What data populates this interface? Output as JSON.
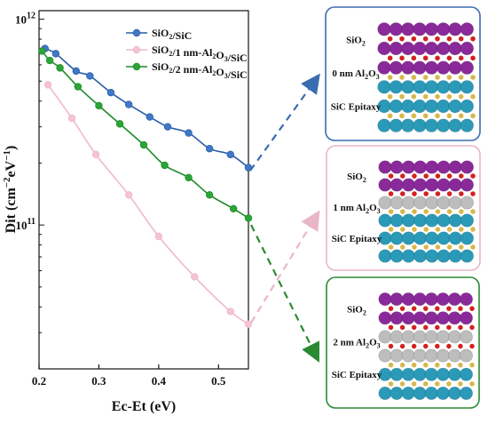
{
  "chart_data": {
    "type": "line",
    "xlabel": "Ec-Et (eV)",
    "ylabel_main": "Dit",
    "ylabel_unit_base": "cm",
    "ylabel_unit_exp1": "−2",
    "ylabel_unit_mid": "eV",
    "ylabel_unit_exp2": "−1",
    "y_scale": "log",
    "xlim": [
      0.2,
      0.55
    ],
    "ylim": [
      20000000000.0,
      1100000000000.0
    ],
    "x_ticks": [
      {
        "value": 0.2,
        "label": "0.2"
      },
      {
        "value": 0.3,
        "label": "0.3"
      },
      {
        "value": 0.4,
        "label": "0.4"
      },
      {
        "value": 0.5,
        "label": "0.5"
      }
    ],
    "y_ticks": [
      {
        "value": 100000000000.0,
        "base": "10",
        "exp": "11"
      },
      {
        "value": 1000000000000.0,
        "base": "10",
        "exp": "12"
      }
    ],
    "legend_position": "top-right",
    "series": [
      {
        "name": "SiO2/SiC",
        "name_parts": [
          "SiO",
          "2",
          "/SiC",
          "",
          ""
        ],
        "color": "#2a5ea8",
        "marker_color": "#3f78c6",
        "x": [
          0.21,
          0.228,
          0.262,
          0.285,
          0.32,
          0.35,
          0.385,
          0.415,
          0.45,
          0.485,
          0.52,
          0.55
        ],
        "y": [
          720000000000.0,
          680000000000.0,
          560000000000.0,
          530000000000.0,
          440000000000.0,
          385000000000.0,
          335000000000.0,
          300000000000.0,
          280000000000.0,
          235000000000.0,
          220000000000.0,
          190000000000.0
        ]
      },
      {
        "name": "SiO2/1 nm-Al2O3/SiC",
        "name_parts": [
          "SiO",
          "2",
          "/1 nm-Al",
          "2",
          "O",
          "3",
          "/SiC"
        ],
        "color": "#f0b8c8",
        "marker_color": "#f4c4d2",
        "x": [
          0.215,
          0.255,
          0.295,
          0.35,
          0.4,
          0.46,
          0.52,
          0.55
        ],
        "y": [
          480000000000.0,
          330000000000.0,
          220000000000.0,
          140000000000.0,
          88000000000.0,
          56000000000.0,
          38000000000.0,
          33000000000.0
        ]
      },
      {
        "name": "SiO2/2 nm-Al2O3/SiC",
        "name_parts": [
          "SiO",
          "2",
          "/2 nm-Al",
          "2",
          "O",
          "3",
          "/SiC"
        ],
        "color": "#1f8a2a",
        "marker_color": "#2aa636",
        "x": [
          0.205,
          0.218,
          0.235,
          0.265,
          0.3,
          0.335,
          0.375,
          0.41,
          0.45,
          0.485,
          0.525,
          0.55
        ],
        "y": [
          700000000000.0,
          630000000000.0,
          580000000000.0,
          470000000000.0,
          380000000000.0,
          310000000000.0,
          245000000000.0,
          195000000000.0,
          170000000000.0,
          140000000000.0,
          120000000000.0,
          108000000000.0
        ]
      }
    ]
  },
  "panels": [
    {
      "label_sio2": [
        "SiO",
        "2"
      ],
      "label_al": [
        "0 nm Al",
        "2",
        "O",
        "3"
      ],
      "label_sic": "SiC Epitaxy",
      "border_color": "#3a6cb2",
      "al_rows": 0
    },
    {
      "label_sio2": [
        "SiO",
        "2"
      ],
      "label_al": [
        "1 nm Al",
        "2",
        "O",
        "3"
      ],
      "label_sic": "SiC Epitaxy",
      "border_color": "#e9b6c6",
      "al_rows": 1
    },
    {
      "label_sio2": [
        "SiO",
        "2"
      ],
      "label_al": [
        "2 nm Al",
        "2",
        "O",
        "3"
      ],
      "label_sic": "SiC Epitaxy",
      "border_color": "#2a8a33",
      "al_rows": 2
    }
  ],
  "colors": {
    "sio2_atom": "#8a2a9a",
    "oxygen_atom": "#d42020",
    "al_atom": "#bdbdbd",
    "si_atom": "#2a9ab8",
    "c_atom": "#d6b84a"
  }
}
